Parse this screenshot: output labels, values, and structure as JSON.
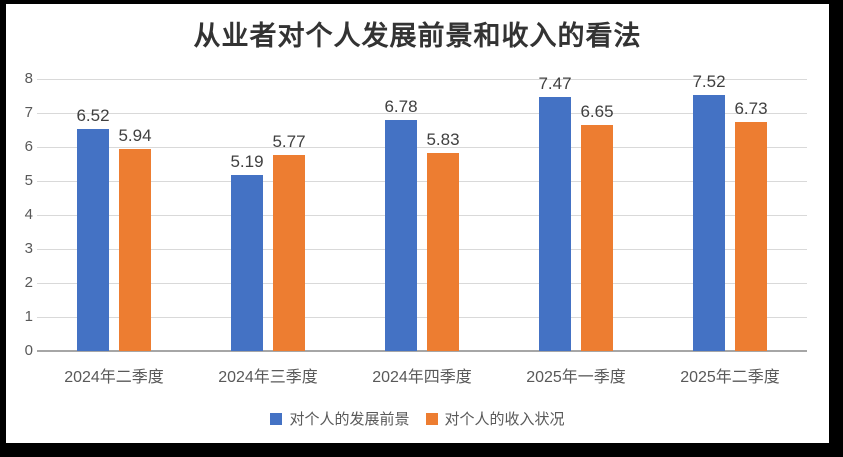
{
  "title": "从业者对个人发展前景和收入的看法",
  "colors": {
    "series1": "#4472C4",
    "series2": "#ED7D31",
    "gridline": "#D9D9D9",
    "axis_line": "#A6A6A6",
    "data_label": "#404040",
    "axis_text": "#595959",
    "title_text": "#333333",
    "panel_background": "#FFFFFF",
    "frame_background": "#000000"
  },
  "chart_data": {
    "type": "bar",
    "title": "从业者对个人发展前景和收入的看法",
    "categories": [
      "2024年二季度",
      "2024年三季度",
      "2024年四季度",
      "2025年一季度",
      "2025年二季度"
    ],
    "series": [
      {
        "name": "对个人的发展前景",
        "color": "#4472C4",
        "values": [
          6.52,
          5.19,
          6.78,
          7.47,
          7.52
        ]
      },
      {
        "name": "对个人的收入状况",
        "color": "#ED7D31",
        "values": [
          5.94,
          5.77,
          5.83,
          6.65,
          6.73
        ]
      }
    ],
    "xlabel": "",
    "ylabel": "",
    "ylim": [
      0,
      8
    ],
    "yticks": [
      0,
      1,
      2,
      3,
      4,
      5,
      6,
      7,
      8
    ],
    "grid": true,
    "data_labels": true,
    "legend_position": "bottom"
  }
}
